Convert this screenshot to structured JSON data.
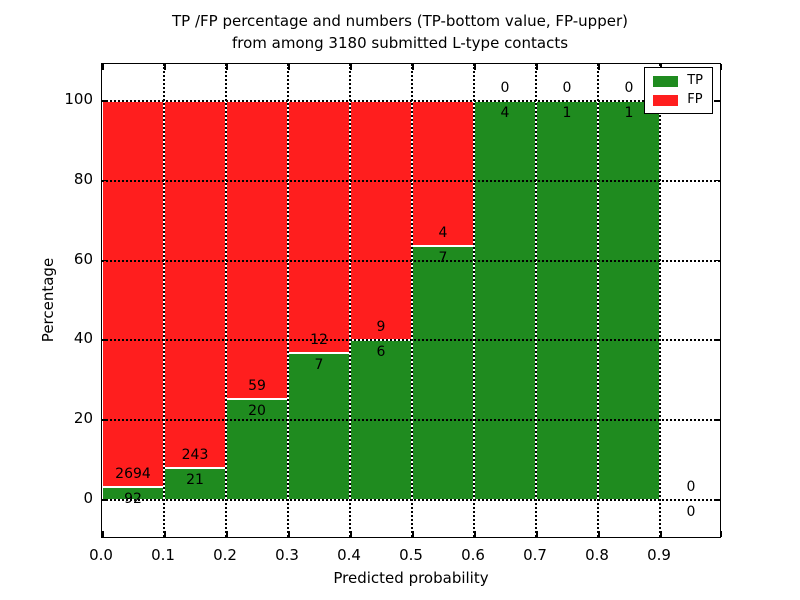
{
  "chart_data": {
    "type": "bar",
    "subtype": "stacked-percentage-histogram",
    "title_lines": [
      "TP /FP percentage and numbers (TP-bottom value, FP-upper)",
      "from among 3180 submitted L-type contacts"
    ],
    "total_submitted": 3180,
    "xlabel": "Predicted probability",
    "ylabel": "Percentage",
    "xlim": [
      0.0,
      1.0
    ],
    "ylim": [
      -9.8,
      109.3
    ],
    "grid": "dotted",
    "x_tick_labels": [
      "0.0",
      "0.1",
      "0.2",
      "0.3",
      "0.4",
      "0.5",
      "0.6",
      "0.7",
      "0.8",
      "0.9"
    ],
    "y_ticks": [
      0,
      20,
      40,
      60,
      80,
      100
    ],
    "y_tick_labels": [
      "0",
      "20",
      "40",
      "60",
      "80",
      "100"
    ],
    "colors": {
      "tp": "#1f8b1f",
      "fp": "#ff1e1e"
    },
    "legend": {
      "position": "upper right",
      "entries": [
        {
          "label": "TP",
          "color": "#1f8b1f"
        },
        {
          "label": "FP",
          "color": "#ff1e1e"
        }
      ]
    },
    "series": [
      {
        "name": "TP",
        "values": [
          92,
          21,
          20,
          7,
          6,
          7,
          4,
          1,
          1,
          0
        ]
      },
      {
        "name": "FP",
        "values": [
          2694,
          243,
          59,
          12,
          9,
          4,
          0,
          0,
          0,
          0
        ]
      }
    ],
    "bins": [
      {
        "range": [
          0.0,
          0.1
        ],
        "tp": 92,
        "fp": 2694,
        "tp_pct": 3.3
      },
      {
        "range": [
          0.1,
          0.2
        ],
        "tp": 21,
        "fp": 243,
        "tp_pct": 7.95
      },
      {
        "range": [
          0.2,
          0.3
        ],
        "tp": 20,
        "fp": 59,
        "tp_pct": 25.32
      },
      {
        "range": [
          0.3,
          0.4
        ],
        "tp": 7,
        "fp": 12,
        "tp_pct": 36.84
      },
      {
        "range": [
          0.4,
          0.5
        ],
        "tp": 6,
        "fp": 9,
        "tp_pct": 40.0
      },
      {
        "range": [
          0.5,
          0.6
        ],
        "tp": 7,
        "fp": 4,
        "tp_pct": 63.64
      },
      {
        "range": [
          0.6,
          0.7
        ],
        "tp": 4,
        "fp": 0,
        "tp_pct": 100.0
      },
      {
        "range": [
          0.7,
          0.8
        ],
        "tp": 1,
        "fp": 0,
        "tp_pct": 100.0
      },
      {
        "range": [
          0.8,
          0.9
        ],
        "tp": 1,
        "fp": 0,
        "tp_pct": 100.0
      },
      {
        "range": [
          0.9,
          1.0
        ],
        "tp": 0,
        "fp": 0,
        "tp_pct": 0.0
      }
    ]
  }
}
